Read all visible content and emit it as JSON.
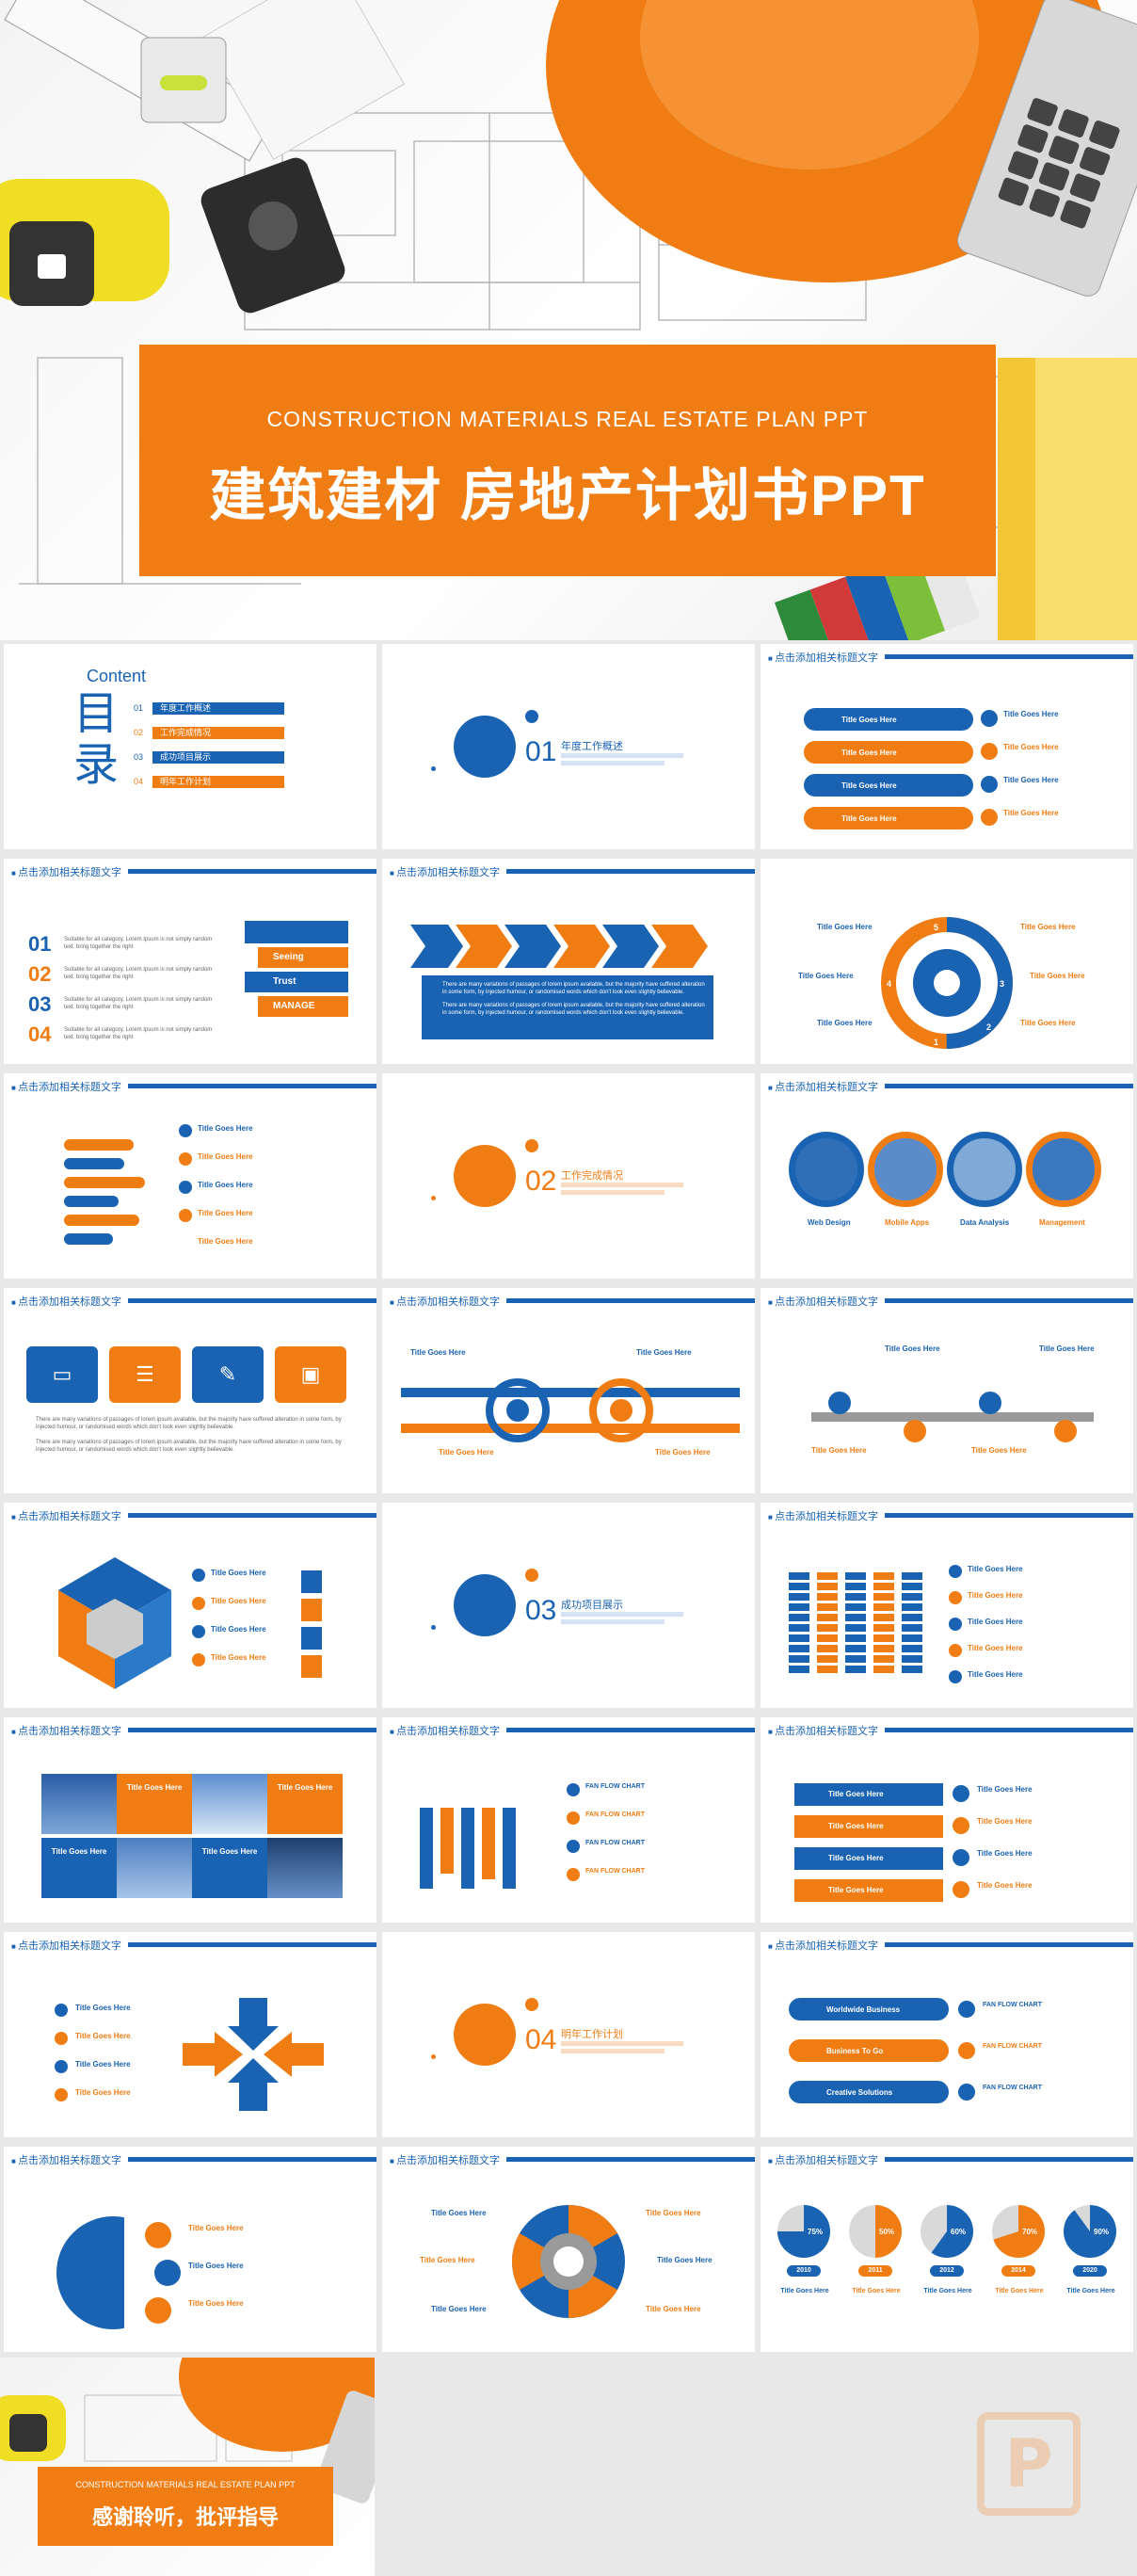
{
  "cover": {
    "subtitle_en": "CONSTRUCTION MATERIALS  REAL ESTATE PLAN PPT",
    "title_zh": "建筑建材 房地产计划书PPT"
  },
  "slide_header": "点击添加相关标题文字",
  "toc": {
    "content_label": "Content",
    "mu_lu": "目\n录",
    "items": [
      {
        "num": "01",
        "label": "年度工作概述"
      },
      {
        "num": "02",
        "label": "工作完成情况"
      },
      {
        "num": "03",
        "label": "成功项目展示"
      },
      {
        "num": "04",
        "label": "明年工作计划"
      }
    ]
  },
  "sections": [
    {
      "num": "01",
      "title": "年度工作概述"
    },
    {
      "num": "02",
      "title": "工作完成情况"
    },
    {
      "num": "03",
      "title": "成功项目展示"
    },
    {
      "num": "04",
      "title": "明年工作计划"
    }
  ],
  "title_goes_here": "Title Goes Here",
  "s1_list": {
    "nums": [
      "01",
      "02",
      "03",
      "04"
    ],
    "text": "Suitable for all category, Lorem Ipsum is not simply random text. bring together the right",
    "arrows": [
      "Seeing",
      "Trust",
      "MANAGE"
    ]
  },
  "s_chevron": {
    "notes": [
      "There are many variations of passages of lorem ipsum available, but the majority have suffered alteration in some form, by injected humour, or randomised words which don't look even slightly believable.",
      "There are many variations of passages of lorem ipsum available, but the majority have suffered alteration in some form, by injected humour, or randomised words which don't look even slightly believable."
    ]
  },
  "cycle_nums": [
    "1",
    "2",
    "3",
    "4",
    "5",
    "6"
  ],
  "circles4": [
    "Web Design",
    "Mobile Apps",
    "Data Analysis",
    "Management"
  ],
  "fan_flow": "FAN FLOW CHART",
  "flow3": [
    "Worldwide Business",
    "Business To Go",
    "Creative Solutions"
  ],
  "pies": [
    {
      "year": "2010",
      "pct": "75%",
      "value": 0.75
    },
    {
      "year": "2011",
      "pct": "50%",
      "value": 0.5
    },
    {
      "year": "2012",
      "pct": "60%",
      "value": 0.6
    },
    {
      "year": "2014",
      "pct": "70%",
      "value": 0.7
    },
    {
      "year": "2020",
      "pct": "90%",
      "value": 0.9
    }
  ],
  "thanks": {
    "subtitle_en": "CONSTRUCTION MATERIALS  REAL ESTATE PLAN PPT",
    "title_zh": "感谢聆听，批评指导"
  },
  "watermark_letter": "P",
  "colors": {
    "orange": "#f07d14",
    "blue": "#1a63b3"
  }
}
